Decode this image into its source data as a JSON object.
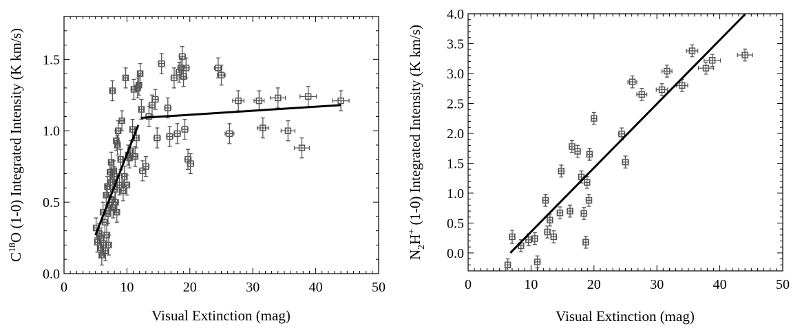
{
  "chart_data": [
    {
      "type": "scatter",
      "xlabel": "Visual Extinction (mag)",
      "ylabel": {
        "pre": "C",
        "sup": "18",
        "post": "O (1-0) Integrated Intensity (K km/s)"
      },
      "xlim": [
        0,
        50
      ],
      "ylim": [
        0,
        1.8
      ],
      "xticks": [
        0,
        10,
        20,
        30,
        40,
        50
      ],
      "yticks": [
        0.0,
        0.5,
        1.0,
        1.5
      ],
      "ytick_labels": [
        "0.0",
        "0.5",
        "1.0",
        "1.5"
      ],
      "x_minor": 1,
      "y_minor": 0.1,
      "points": [
        [
          5.1,
          0.32,
          0.3,
          0.07
        ],
        [
          5.3,
          0.22,
          0.3,
          0.07
        ],
        [
          5.6,
          0.28,
          0.3,
          0.07
        ],
        [
          5.8,
          0.18,
          0.3,
          0.07
        ],
        [
          5.9,
          0.25,
          0.3,
          0.07
        ],
        [
          6.0,
          0.13,
          0.3,
          0.07
        ],
        [
          6.2,
          0.43,
          0.3,
          0.07
        ],
        [
          6.3,
          0.2,
          0.3,
          0.07
        ],
        [
          6.5,
          0.36,
          0.3,
          0.07
        ],
        [
          6.6,
          0.16,
          0.3,
          0.07
        ],
        [
          6.7,
          0.55,
          0.3,
          0.07
        ],
        [
          6.8,
          0.27,
          0.3,
          0.07
        ],
        [
          6.9,
          0.61,
          0.3,
          0.07
        ],
        [
          7.0,
          0.42,
          0.3,
          0.07
        ],
        [
          7.1,
          0.2,
          0.3,
          0.07
        ],
        [
          7.2,
          0.48,
          0.3,
          0.07
        ],
        [
          7.3,
          0.71,
          0.3,
          0.07
        ],
        [
          7.4,
          0.64,
          0.3,
          0.07
        ],
        [
          7.5,
          0.78,
          0.3,
          0.07
        ],
        [
          7.6,
          0.52,
          0.3,
          0.07
        ],
        [
          7.7,
          1.28,
          0.3,
          0.07
        ],
        [
          7.8,
          0.46,
          0.3,
          0.07
        ],
        [
          7.9,
          0.72,
          0.3,
          0.07
        ],
        [
          8.0,
          0.68,
          0.3,
          0.07
        ],
        [
          8.1,
          0.59,
          0.3,
          0.07
        ],
        [
          8.2,
          0.5,
          0.3,
          0.07
        ],
        [
          8.3,
          0.93,
          0.3,
          0.07
        ],
        [
          8.4,
          0.43,
          0.3,
          0.07
        ],
        [
          8.5,
          0.9,
          0.3,
          0.07
        ],
        [
          8.6,
          1.0,
          0.3,
          0.07
        ],
        [
          8.8,
          0.62,
          0.3,
          0.07
        ],
        [
          9.0,
          0.8,
          0.3,
          0.07
        ],
        [
          9.2,
          1.07,
          0.3,
          0.07
        ],
        [
          9.4,
          0.58,
          0.3,
          0.07
        ],
        [
          9.6,
          0.68,
          0.3,
          0.07
        ],
        [
          9.8,
          1.37,
          0.3,
          0.07
        ],
        [
          10.0,
          0.62,
          0.3,
          0.07
        ],
        [
          10.2,
          0.83,
          0.3,
          0.07
        ],
        [
          10.4,
          0.81,
          0.3,
          0.07
        ],
        [
          10.6,
          0.86,
          0.3,
          0.07
        ],
        [
          10.9,
          1.01,
          0.3,
          0.07
        ],
        [
          11.1,
          1.29,
          0.3,
          0.07
        ],
        [
          11.3,
          0.82,
          0.3,
          0.07
        ],
        [
          11.5,
          0.95,
          0.3,
          0.07
        ],
        [
          11.7,
          1.3,
          0.3,
          0.07
        ],
        [
          11.9,
          1.32,
          0.3,
          0.07
        ],
        [
          12.1,
          1.4,
          0.3,
          0.07
        ],
        [
          12.3,
          1.15,
          0.3,
          0.07
        ],
        [
          12.5,
          0.72,
          0.5,
          0.07
        ],
        [
          13.0,
          0.75,
          0.5,
          0.07
        ],
        [
          13.5,
          1.1,
          0.5,
          0.07
        ],
        [
          14.0,
          1.18,
          0.5,
          0.07
        ],
        [
          14.5,
          1.22,
          0.5,
          0.07
        ],
        [
          14.8,
          0.95,
          0.5,
          0.07
        ],
        [
          15.5,
          1.47,
          0.5,
          0.07
        ],
        [
          16.5,
          1.16,
          0.5,
          0.07
        ],
        [
          16.8,
          0.96,
          0.5,
          0.07
        ],
        [
          17.5,
          1.37,
          0.5,
          0.07
        ],
        [
          18.0,
          0.98,
          0.5,
          0.07
        ],
        [
          18.3,
          1.41,
          0.5,
          0.07
        ],
        [
          18.6,
          1.44,
          0.5,
          0.07
        ],
        [
          18.8,
          1.52,
          0.5,
          0.07
        ],
        [
          19.0,
          1.38,
          0.5,
          0.07
        ],
        [
          19.2,
          1.01,
          0.5,
          0.07
        ],
        [
          19.4,
          1.44,
          0.5,
          0.07
        ],
        [
          19.7,
          0.8,
          0.5,
          0.07
        ],
        [
          20.1,
          0.77,
          0.5,
          0.07
        ],
        [
          24.5,
          1.44,
          0.6,
          0.07
        ],
        [
          25.0,
          1.39,
          0.6,
          0.07
        ],
        [
          26.3,
          0.98,
          0.7,
          0.07
        ],
        [
          27.7,
          1.21,
          0.9,
          0.07
        ],
        [
          31.0,
          1.21,
          0.8,
          0.07
        ],
        [
          31.6,
          1.02,
          0.9,
          0.07
        ],
        [
          34.0,
          1.23,
          1.2,
          0.07
        ],
        [
          35.6,
          1.0,
          1.1,
          0.07
        ],
        [
          37.8,
          0.88,
          1.2,
          0.07
        ],
        [
          38.8,
          1.24,
          1.3,
          0.07
        ],
        [
          44.0,
          1.21,
          1.3,
          0.07
        ]
      ],
      "fit_lines": [
        {
          "x": [
            5.0,
            11.8
          ],
          "y": [
            0.27,
            1.04
          ]
        },
        {
          "x": [
            12.2,
            44.0
          ],
          "y": [
            1.09,
            1.18
          ]
        }
      ]
    },
    {
      "type": "scatter",
      "xlabel": "Visual Extinction (mag)",
      "ylabel": {
        "pre": "N",
        "sub": "2",
        "mid": "H",
        "sup": "+",
        "post": " (1-0) Integrated Intensity (K km/s)"
      },
      "xlim": [
        0,
        50
      ],
      "ylim": [
        -0.3,
        4.0
      ],
      "xticks": [
        0,
        10,
        20,
        30,
        40,
        50
      ],
      "yticks": [
        0.0,
        0.5,
        1.0,
        1.5,
        2.0,
        2.5,
        3.0,
        3.5,
        4.0
      ],
      "ytick_labels": [
        "0.0",
        "0.5",
        "1.0",
        "1.5",
        "2.0",
        "2.5",
        "3.0",
        "3.5",
        "4.0"
      ],
      "x_minor": 1,
      "y_minor": 0.1,
      "points": [
        [
          6.3,
          -0.2,
          0.4,
          0.1
        ],
        [
          7.0,
          0.27,
          0.4,
          0.11
        ],
        [
          8.4,
          0.12,
          0.4,
          0.1
        ],
        [
          9.6,
          0.22,
          0.4,
          0.1
        ],
        [
          10.6,
          0.24,
          0.4,
          0.1
        ],
        [
          11.0,
          -0.15,
          0.4,
          0.1
        ],
        [
          12.3,
          0.88,
          0.4,
          0.1
        ],
        [
          12.6,
          0.35,
          0.4,
          0.1
        ],
        [
          13.0,
          0.55,
          0.4,
          0.1
        ],
        [
          13.6,
          0.27,
          0.4,
          0.1
        ],
        [
          14.6,
          0.67,
          0.4,
          0.1
        ],
        [
          14.8,
          1.37,
          0.4,
          0.1
        ],
        [
          16.2,
          0.7,
          0.4,
          0.1
        ],
        [
          16.5,
          1.78,
          0.4,
          0.1
        ],
        [
          17.4,
          1.7,
          0.4,
          0.1
        ],
        [
          18.0,
          1.27,
          0.4,
          0.1
        ],
        [
          18.4,
          0.66,
          0.4,
          0.1
        ],
        [
          18.7,
          0.18,
          0.4,
          0.1
        ],
        [
          18.9,
          1.18,
          0.4,
          0.1
        ],
        [
          19.2,
          0.88,
          0.4,
          0.1
        ],
        [
          19.3,
          1.65,
          0.4,
          0.1
        ],
        [
          20.0,
          2.25,
          0.4,
          0.1
        ],
        [
          24.4,
          1.99,
          0.5,
          0.1
        ],
        [
          25.0,
          1.52,
          0.5,
          0.1
        ],
        [
          26.1,
          2.86,
          0.7,
          0.1
        ],
        [
          27.6,
          2.65,
          0.8,
          0.1
        ],
        [
          30.8,
          2.73,
          0.9,
          0.1
        ],
        [
          31.6,
          3.04,
          0.8,
          0.1
        ],
        [
          34.0,
          2.8,
          0.9,
          0.1
        ],
        [
          35.6,
          3.38,
          0.9,
          0.1
        ],
        [
          37.8,
          3.09,
          1.2,
          0.1
        ],
        [
          38.8,
          3.22,
          1.3,
          0.1
        ],
        [
          44.0,
          3.31,
          1.2,
          0.1
        ]
      ],
      "fit_lines": [
        {
          "x": [
            6.7,
            44.0
          ],
          "y": [
            0.0,
            3.99
          ]
        }
      ]
    }
  ]
}
